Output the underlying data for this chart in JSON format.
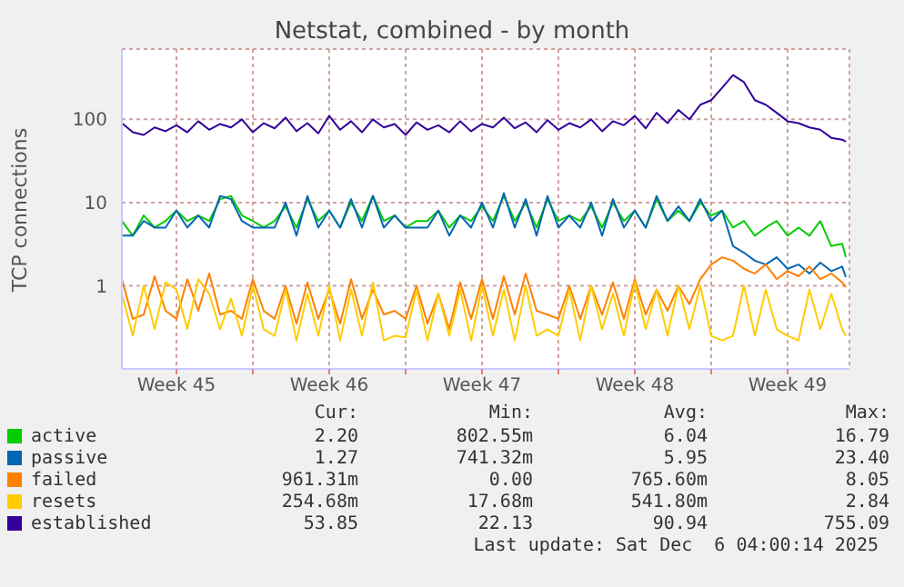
{
  "chart_data": {
    "type": "line",
    "title": "Netstat, combined - by month",
    "ylabel": "TCP connections",
    "log": "y",
    "grid": true,
    "legend": "bottom",
    "ylim": [
      0.1,
      700
    ],
    "yticks": [
      1,
      10,
      100
    ],
    "xlim": [
      "2025-11-03T00:00",
      "2025-12-06T08:00"
    ],
    "xticks": [
      {
        "value": "2025-11-05T12:00",
        "label": "Week 45"
      },
      {
        "value": "2025-11-09T00:00",
        "label": null
      },
      {
        "value": "2025-11-12T12:00",
        "label": "Week 46"
      },
      {
        "value": "2025-11-16T00:00",
        "label": null
      },
      {
        "value": "2025-11-19T12:00",
        "label": "Week 47"
      },
      {
        "value": "2025-11-23T00:00",
        "label": null
      },
      {
        "value": "2025-11-26T12:00",
        "label": "Week 48"
      },
      {
        "value": "2025-11-30T00:00",
        "label": null
      },
      {
        "value": "2025-12-03T12:00",
        "label": "Week 49"
      }
    ],
    "x": [
      "2025-11-03T00:00",
      "2025-11-03T12:00",
      "2025-11-04T00:00",
      "2025-11-04T12:00",
      "2025-11-05T00:00",
      "2025-11-05T12:00",
      "2025-11-06T00:00",
      "2025-11-06T12:00",
      "2025-11-07T00:00",
      "2025-11-07T12:00",
      "2025-11-08T00:00",
      "2025-11-08T12:00",
      "2025-11-09T00:00",
      "2025-11-09T12:00",
      "2025-11-10T00:00",
      "2025-11-10T12:00",
      "2025-11-11T00:00",
      "2025-11-11T12:00",
      "2025-11-12T00:00",
      "2025-11-12T12:00",
      "2025-11-13T00:00",
      "2025-11-13T12:00",
      "2025-11-14T00:00",
      "2025-11-14T12:00",
      "2025-11-15T00:00",
      "2025-11-15T12:00",
      "2025-11-16T00:00",
      "2025-11-16T12:00",
      "2025-11-17T00:00",
      "2025-11-17T12:00",
      "2025-11-18T00:00",
      "2025-11-18T12:00",
      "2025-11-19T00:00",
      "2025-11-19T12:00",
      "2025-11-20T00:00",
      "2025-11-20T12:00",
      "2025-11-21T00:00",
      "2025-11-21T12:00",
      "2025-11-22T00:00",
      "2025-11-22T12:00",
      "2025-11-23T00:00",
      "2025-11-23T12:00",
      "2025-11-24T00:00",
      "2025-11-24T12:00",
      "2025-11-25T00:00",
      "2025-11-25T12:00",
      "2025-11-26T00:00",
      "2025-11-26T12:00",
      "2025-11-27T00:00",
      "2025-11-27T12:00",
      "2025-11-28T00:00",
      "2025-11-28T12:00",
      "2025-11-29T00:00",
      "2025-11-29T12:00",
      "2025-11-30T00:00",
      "2025-11-30T12:00",
      "2025-12-01T00:00",
      "2025-12-01T12:00",
      "2025-12-02T00:00",
      "2025-12-02T12:00",
      "2025-12-03T00:00",
      "2025-12-03T12:00",
      "2025-12-04T00:00",
      "2025-12-04T12:00",
      "2025-12-05T00:00",
      "2025-12-05T12:00",
      "2025-12-06T00:00",
      "2025-12-06T04:00"
    ],
    "series": [
      {
        "name": "active",
        "color": "#00cc00",
        "values": [
          6,
          4,
          7,
          5,
          6,
          8,
          6,
          7,
          6,
          11,
          12,
          7,
          6,
          5,
          6,
          9,
          5,
          11,
          6,
          8,
          5,
          10,
          6,
          12,
          6,
          7,
          5,
          6,
          6,
          8,
          5,
          7,
          6,
          9,
          6,
          12,
          6,
          10,
          5,
          11,
          6,
          7,
          6,
          9,
          5,
          10,
          6,
          8,
          5,
          11,
          6,
          8,
          6,
          10,
          7,
          8,
          5,
          6,
          4,
          5,
          6,
          4,
          5,
          4,
          6,
          3,
          3.2,
          2.2
        ]
      },
      {
        "name": "passive",
        "color": "#0066b3",
        "values": [
          4,
          4,
          6,
          5,
          5,
          8,
          5,
          7,
          5,
          12,
          11,
          6,
          5,
          5,
          5,
          10,
          4,
          12,
          5,
          8,
          5,
          11,
          5,
          12,
          5,
          7,
          5,
          5,
          5,
          8,
          4,
          7,
          5,
          10,
          5,
          13,
          5,
          11,
          4,
          12,
          5,
          7,
          5,
          10,
          4,
          11,
          5,
          8,
          5,
          12,
          6,
          9,
          6,
          11,
          6,
          8,
          3,
          2.5,
          2,
          1.8,
          2.2,
          1.6,
          1.8,
          1.4,
          1.9,
          1.5,
          1.7,
          1.27
        ]
      },
      {
        "name": "failed",
        "color": "#ff8000",
        "values": [
          1.2,
          0.4,
          0.45,
          1.3,
          0.5,
          0.4,
          1.2,
          0.5,
          1.4,
          0.45,
          0.5,
          0.4,
          1.2,
          0.5,
          0.4,
          1.0,
          0.35,
          1.1,
          0.4,
          0.9,
          0.35,
          1.2,
          0.4,
          0.9,
          0.45,
          0.5,
          0.4,
          1.0,
          0.35,
          0.8,
          0.3,
          1.1,
          0.4,
          1.2,
          0.4,
          1.3,
          0.45,
          1.4,
          0.5,
          0.45,
          0.4,
          1.0,
          0.4,
          1.0,
          0.45,
          1.1,
          0.4,
          1.2,
          0.45,
          0.9,
          0.5,
          1.0,
          0.6,
          1.2,
          1.8,
          2.2,
          2.0,
          1.6,
          1.4,
          1.8,
          1.2,
          1.5,
          1.3,
          1.7,
          1.2,
          1.4,
          1.1,
          0.96
        ]
      },
      {
        "name": "resets",
        "color": "#ffcc00",
        "values": [
          0.8,
          0.25,
          1.0,
          0.3,
          1.1,
          0.9,
          0.3,
          1.2,
          0.8,
          0.3,
          0.7,
          0.25,
          1.0,
          0.3,
          0.25,
          0.9,
          0.22,
          0.8,
          0.25,
          1.0,
          0.22,
          0.9,
          0.25,
          1.1,
          0.22,
          0.25,
          0.24,
          0.9,
          0.22,
          0.8,
          0.25,
          0.9,
          0.22,
          1.0,
          0.25,
          0.9,
          0.22,
          1.0,
          0.25,
          0.3,
          0.25,
          0.9,
          0.22,
          1.0,
          0.3,
          0.8,
          0.25,
          1.1,
          0.3,
          0.9,
          0.25,
          1.0,
          0.3,
          1.0,
          0.25,
          0.22,
          0.25,
          1.0,
          0.25,
          0.9,
          0.3,
          0.25,
          0.22,
          0.9,
          0.3,
          0.8,
          0.3,
          0.25
        ]
      },
      {
        "name": "established",
        "color": "#330099",
        "values": [
          90,
          70,
          65,
          80,
          72,
          85,
          70,
          95,
          75,
          88,
          80,
          100,
          70,
          90,
          78,
          105,
          72,
          90,
          68,
          110,
          75,
          95,
          70,
          100,
          80,
          88,
          65,
          92,
          75,
          85,
          70,
          95,
          72,
          88,
          80,
          105,
          78,
          92,
          70,
          98,
          75,
          90,
          80,
          100,
          72,
          95,
          85,
          110,
          78,
          120,
          90,
          130,
          100,
          150,
          170,
          240,
          340,
          280,
          170,
          150,
          120,
          95,
          90,
          80,
          75,
          60,
          57,
          53.85
        ]
      }
    ],
    "annotations": [
      "Cur:",
      "Min:",
      "Avg:",
      "Max:",
      "2.20",
      "802.55m",
      "6.04",
      "16.79",
      "1.27",
      "741.32m",
      "5.95",
      "23.40",
      "961.31m",
      "0.00",
      "765.60m",
      "8.05",
      "254.68m",
      "17.68m",
      "541.80m",
      "2.84",
      "53.85",
      "22.13",
      "90.94",
      "755.09",
      "Last update: Sat Dec  6 04:00:14 2025"
    ]
  }
}
